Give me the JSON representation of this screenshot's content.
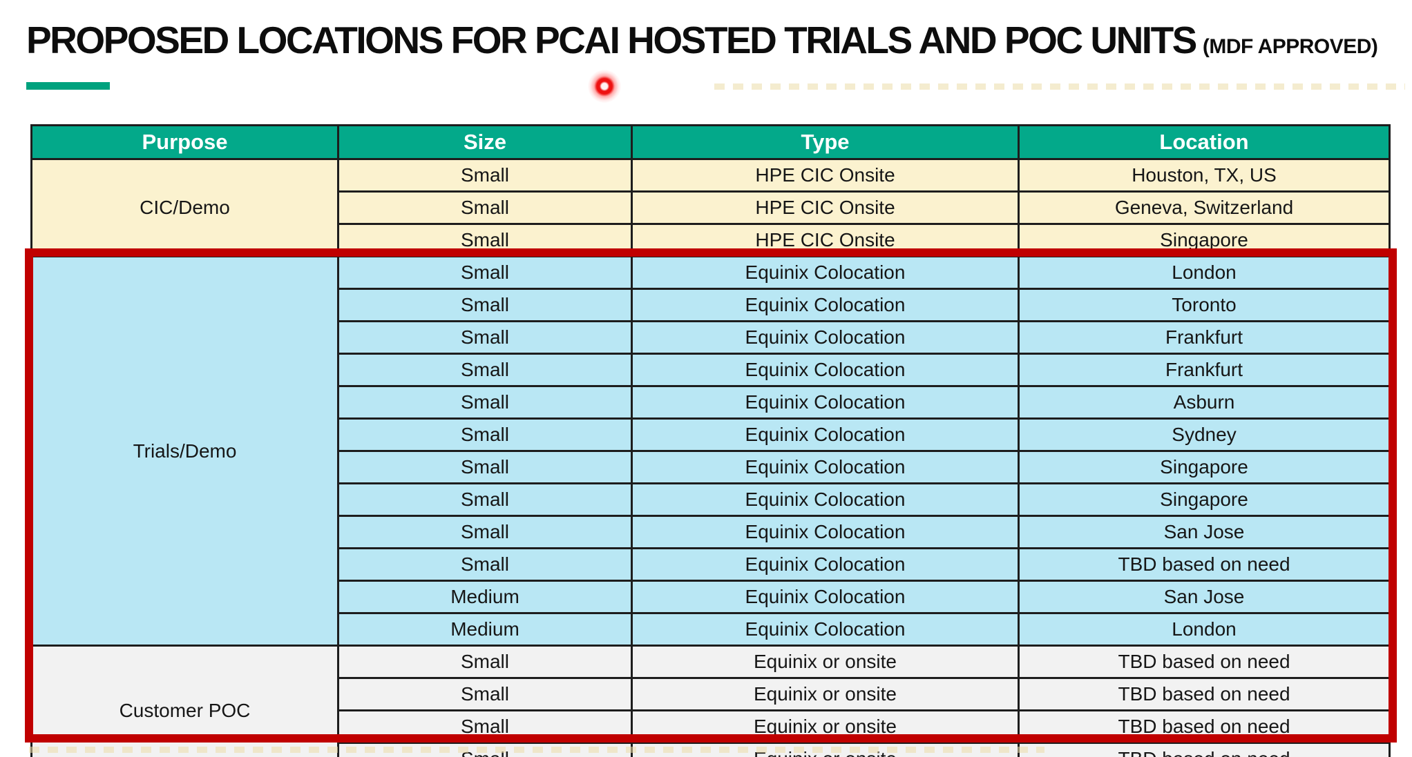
{
  "title": {
    "text": "PROPOSED LOCATIONS FOR PCAI HOSTED TRIALS AND POC UNITS",
    "suffix": "(MDF APPROVED)"
  },
  "accent_bar_color": "#00A27E",
  "laser_pointer": {
    "color": "#ee1111"
  },
  "table": {
    "headers": [
      "Purpose",
      "Size",
      "Type",
      "Location"
    ],
    "header_bg": "#03A98A",
    "highlight_border_color": "#C00000",
    "sections": [
      {
        "purpose": "CIC/Demo",
        "bg": "#FBF2CF",
        "rows": [
          {
            "size": "Small",
            "type": "HPE CIC Onsite",
            "location": "Houston, TX, US"
          },
          {
            "size": "Small",
            "type": "HPE CIC Onsite",
            "location": "Geneva, Switzerland"
          },
          {
            "size": "Small",
            "type": "HPE CIC Onsite",
            "location": "Singapore"
          }
        ]
      },
      {
        "purpose": "Trials/Demo",
        "bg": "#B9E7F4",
        "rows": [
          {
            "size": "Small",
            "type": "Equinix Colocation",
            "location": "London"
          },
          {
            "size": "Small",
            "type": "Equinix Colocation",
            "location": "Toronto"
          },
          {
            "size": "Small",
            "type": "Equinix Colocation",
            "location": "Frankfurt"
          },
          {
            "size": "Small",
            "type": "Equinix Colocation",
            "location": "Frankfurt"
          },
          {
            "size": "Small",
            "type": "Equinix Colocation",
            "location": "Asburn"
          },
          {
            "size": "Small",
            "type": "Equinix Colocation",
            "location": "Sydney"
          },
          {
            "size": "Small",
            "type": "Equinix Colocation",
            "location": "Singapore"
          },
          {
            "size": "Small",
            "type": "Equinix Colocation",
            "location": "Singapore"
          },
          {
            "size": "Small",
            "type": "Equinix Colocation",
            "location": "San Jose"
          },
          {
            "size": "Small",
            "type": "Equinix Colocation",
            "location": "TBD based on need"
          },
          {
            "size": "Medium",
            "type": "Equinix Colocation",
            "location": "San Jose"
          },
          {
            "size": "Medium",
            "type": "Equinix Colocation",
            "location": "London"
          }
        ]
      },
      {
        "purpose": "Customer POC",
        "bg": "#F2F2F2",
        "rows": [
          {
            "size": "Small",
            "type": "Equinix or onsite",
            "location": "TBD based on need"
          },
          {
            "size": "Small",
            "type": "Equinix or onsite",
            "location": "TBD based on need"
          },
          {
            "size": "Small",
            "type": "Equinix or onsite",
            "location": "TBD based on need"
          },
          {
            "size": "Small",
            "type": "Equinix or onsite",
            "location": "TBD based on need"
          }
        ]
      }
    ]
  }
}
